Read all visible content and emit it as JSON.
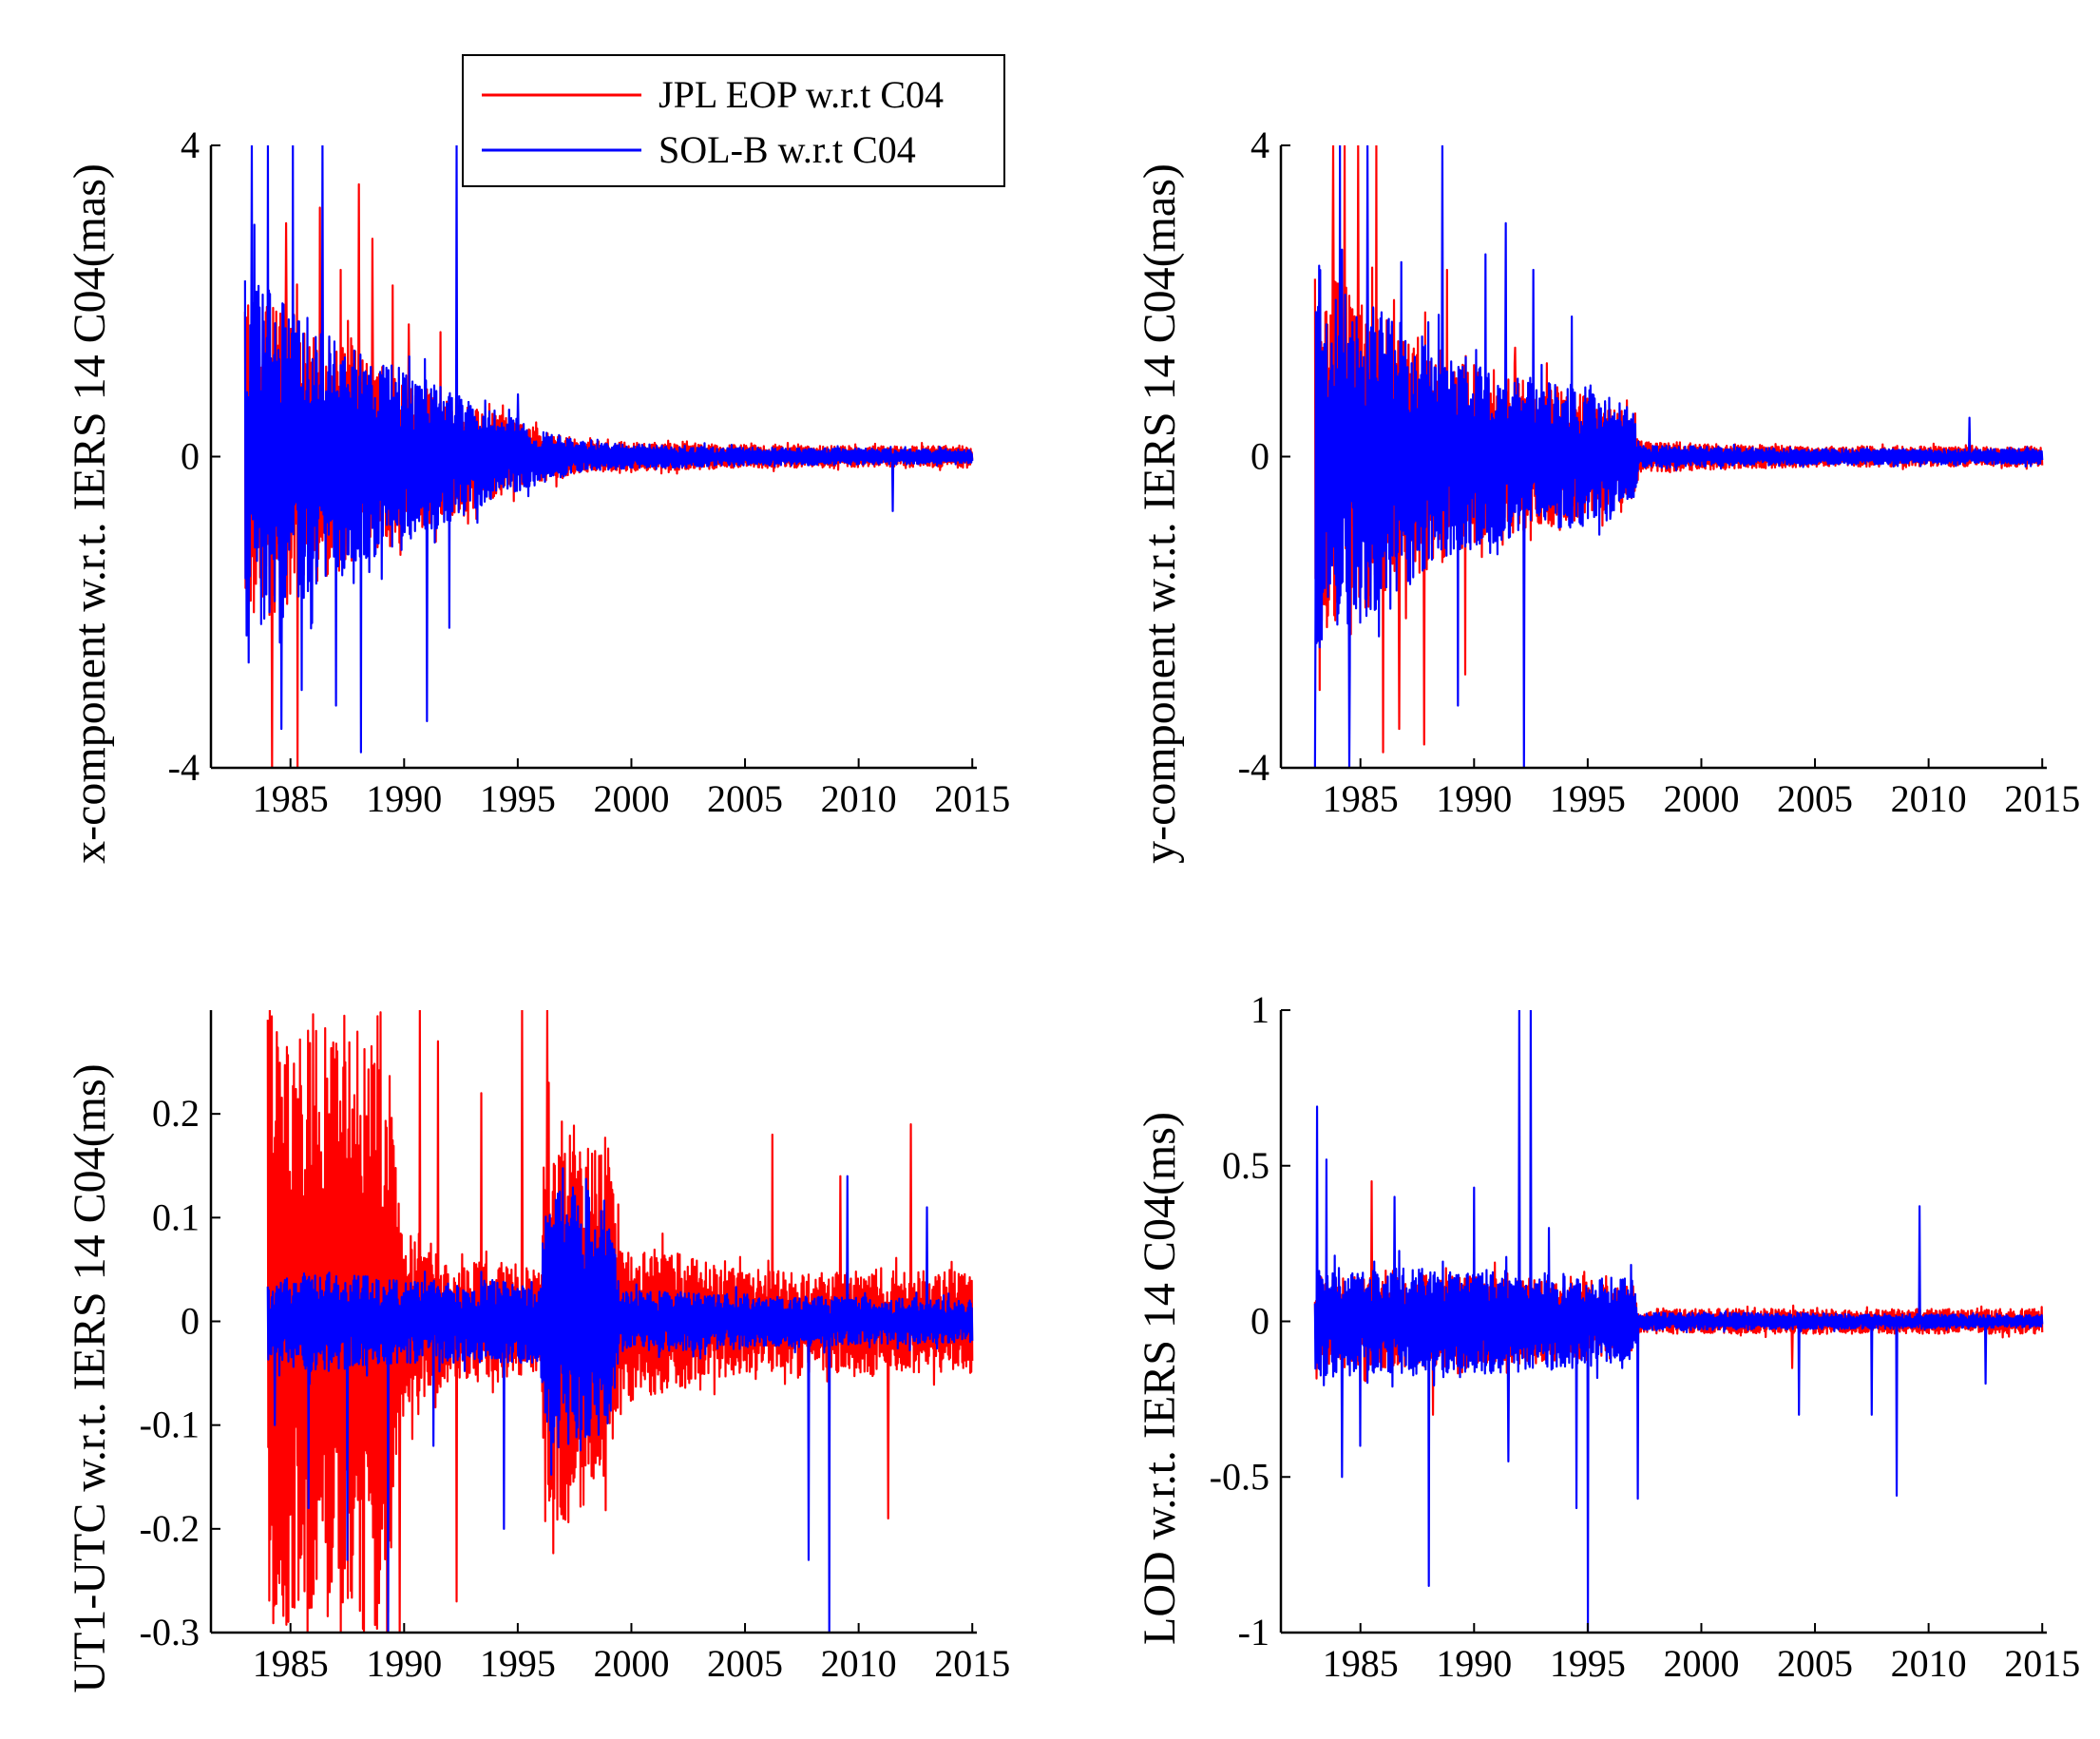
{
  "legend": {
    "entries": [
      {
        "label": "JPL EOP w.r.t C04",
        "color": "#ff0000"
      },
      {
        "label": "SOL-B w.r.t C04",
        "color": "#0000ff"
      }
    ]
  },
  "chart_data": [
    {
      "id": "x",
      "type": "line",
      "ylabel": "x-component w.r.t. IERS 14 C04(mas)",
      "xlim": [
        1981.5,
        2015.2
      ],
      "ylim": [
        -4,
        4
      ],
      "yticks": [
        -4,
        0,
        4
      ],
      "ytick_labels": [
        "-4",
        "0",
        "4"
      ],
      "xticks": [
        1985,
        1990,
        1995,
        2000,
        2005,
        2010,
        2015
      ],
      "xtick_labels": [
        "1985",
        "1990",
        "1995",
        "2000",
        "2005",
        "2010",
        "2015"
      ],
      "x_start": 1983.0,
      "x_end": 2015.0,
      "series": [
        {
          "name": "JPL EOP w.r.t C04",
          "color": "#ff0000",
          "envelope": [
            [
              1983,
              2.2
            ],
            [
              1985,
              1.9
            ],
            [
              1988,
              1.3
            ],
            [
              1991,
              0.9
            ],
            [
              1994,
              0.55
            ],
            [
              1996,
              0.35
            ],
            [
              1998,
              0.2
            ],
            [
              2005,
              0.15
            ],
            [
              2012,
              0.13
            ],
            [
              2015,
              0.15
            ]
          ],
          "spikes": [
            [
              1983.4,
              -2.0
            ],
            [
              1984.2,
              -4.0
            ],
            [
              1984.8,
              3.0
            ],
            [
              1985.3,
              -4.0
            ],
            [
              1986.3,
              3.2
            ],
            [
              1987.2,
              2.4
            ],
            [
              1988.0,
              3.5
            ],
            [
              1988.6,
              2.8
            ],
            [
              1989.5,
              2.2
            ],
            [
              1990.2,
              1.7
            ],
            [
              1991.6,
              1.6
            ]
          ]
        },
        {
          "name": "SOL-B w.r.t C04",
          "color": "#0000ff",
          "envelope": [
            [
              1983,
              2.4
            ],
            [
              1985,
              2.0
            ],
            [
              1988,
              1.4
            ],
            [
              1991,
              1.0
            ],
            [
              1994,
              0.55
            ],
            [
              1996,
              0.35
            ],
            [
              1998,
              0.18
            ],
            [
              2005,
              0.12
            ],
            [
              2012,
              0.1
            ],
            [
              2015,
              0.1
            ]
          ],
          "spikes": [
            [
              1983.3,
              4.0
            ],
            [
              1984.0,
              4.0
            ],
            [
              1984.6,
              -3.5
            ],
            [
              1985.1,
              4.0
            ],
            [
              1985.5,
              -3.0
            ],
            [
              1986.4,
              4.0
            ],
            [
              1987.0,
              -3.2
            ],
            [
              1988.1,
              -3.8
            ],
            [
              1991.0,
              -3.4
            ],
            [
              1992.3,
              4.0
            ],
            [
              1992.0,
              -2.2
            ],
            [
              1995.0,
              0.8
            ],
            [
              2011.5,
              -0.7
            ]
          ]
        }
      ]
    },
    {
      "id": "y",
      "type": "line",
      "ylabel": "y-component w.r.t. IERS 14 C04(mas)",
      "xlim": [
        1981.5,
        2015.2
      ],
      "ylim": [
        -4,
        4
      ],
      "yticks": [
        -4,
        0,
        4
      ],
      "ytick_labels": [
        "-4",
        "0",
        "4"
      ],
      "xticks": [
        1985,
        1990,
        1995,
        2000,
        2005,
        2010,
        2015
      ],
      "xtick_labels": [
        "1985",
        "1990",
        "1995",
        "2000",
        "2005",
        "2010",
        "2015"
      ],
      "x_start": 1983.0,
      "x_end": 2015.0,
      "series": [
        {
          "name": "JPL EOP w.r.t C04",
          "color": "#ff0000",
          "envelope": [
            [
              1983,
              2.5
            ],
            [
              1986,
              1.8
            ],
            [
              1989,
              1.3
            ],
            [
              1992,
              1.0
            ],
            [
              1995,
              0.8
            ],
            [
              1997,
              0.55
            ],
            [
              1997.3,
              0.2
            ],
            [
              2005,
              0.13
            ],
            [
              2015,
              0.13
            ]
          ],
          "spikes": [
            [
              1983.2,
              -3.0
            ],
            [
              1983.8,
              4.0
            ],
            [
              1984.3,
              4.0
            ],
            [
              1984.9,
              4.0
            ],
            [
              1985.7,
              4.0
            ],
            [
              1986.0,
              -3.8
            ],
            [
              1986.7,
              -3.5
            ],
            [
              1987.8,
              -3.7
            ],
            [
              1988.8,
              2.4
            ],
            [
              1989.6,
              -2.8
            ],
            [
              1991.8,
              1.4
            ],
            [
              1993.2,
              1.2
            ]
          ]
        },
        {
          "name": "SOL-B w.r.t C04",
          "color": "#0000ff",
          "envelope": [
            [
              1983,
              2.6
            ],
            [
              1986,
              1.9
            ],
            [
              1989,
              1.3
            ],
            [
              1992,
              1.0
            ],
            [
              1995,
              0.9
            ],
            [
              1997,
              0.6
            ],
            [
              1997.3,
              0.15
            ],
            [
              2005,
              0.1
            ],
            [
              2015,
              0.1
            ]
          ],
          "spikes": [
            [
              1983.0,
              -4.0
            ],
            [
              1983.5,
              1.7
            ],
            [
              1984.1,
              4.0
            ],
            [
              1984.5,
              -4.0
            ],
            [
              1985.3,
              4.0
            ],
            [
              1986.8,
              2.5
            ],
            [
              1988.6,
              4.0
            ],
            [
              1989.3,
              -3.2
            ],
            [
              1990.5,
              2.6
            ],
            [
              1991.4,
              3.0
            ],
            [
              1992.2,
              -4.0
            ],
            [
              1992.6,
              2.4
            ],
            [
              1994.3,
              1.8
            ],
            [
              1996.0,
              -0.8
            ],
            [
              2011.8,
              0.5
            ]
          ]
        }
      ]
    },
    {
      "id": "ut1",
      "type": "line",
      "ylabel": "UT1-UTC w.r.t. IERS 14 C04(ms)",
      "xlim": [
        1981.5,
        2015.2
      ],
      "ylim": [
        -0.3,
        0.3
      ],
      "yticks": [
        -0.3,
        -0.2,
        -0.1,
        0,
        0.1,
        0.2
      ],
      "ytick_labels": [
        "-0.3",
        "-0.2",
        "-0.1",
        "0",
        "0.1",
        "0.2"
      ],
      "xticks": [
        1985,
        1990,
        1995,
        2000,
        2005,
        2010,
        2015
      ],
      "xtick_labels": [
        "1985",
        "1990",
        "1995",
        "2000",
        "2005",
        "2010",
        "2015"
      ],
      "x_start": 1984.0,
      "x_end": 2015.0,
      "series": [
        {
          "name": "JPL EOP w.r.t C04",
          "color": "#ff0000",
          "envelope": [
            [
              1984,
              0.3
            ],
            [
              1989.2,
              0.3
            ],
            [
              1989.8,
              0.1
            ],
            [
              1992,
              0.06
            ],
            [
              1996,
              0.05
            ],
            [
              1996.2,
              0.2
            ],
            [
              1999,
              0.18
            ],
            [
              1999.5,
              0.08
            ],
            [
              2005,
              0.05
            ],
            [
              2015,
              0.05
            ]
          ],
          "spikes": [
            [
              1989.8,
              -0.3
            ],
            [
              1990.7,
              0.3
            ],
            [
              1991.5,
              0.27
            ],
            [
              1992.3,
              -0.27
            ],
            [
              1993.4,
              0.22
            ],
            [
              1995.2,
              0.3
            ],
            [
              1996.3,
              0.3
            ],
            [
              2006.2,
              0.18
            ],
            [
              2009.2,
              0.14
            ],
            [
              2011.3,
              -0.19
            ],
            [
              2012.3,
              0.19
            ]
          ]
        },
        {
          "name": "SOL-B w.r.t C04",
          "color": "#0000ff",
          "envelope": [
            [
              1984,
              0.04
            ],
            [
              1986,
              0.05
            ],
            [
              1990,
              0.04
            ],
            [
              1996,
              0.04
            ],
            [
              1996.2,
              0.13
            ],
            [
              1999,
              0.12
            ],
            [
              1999.5,
              0.03
            ],
            [
              2015,
              0.02
            ]
          ],
          "spikes": [
            [
              1984.3,
              -0.1
            ],
            [
              1985.8,
              -0.18
            ],
            [
              1987.5,
              -0.23
            ],
            [
              1989.3,
              -0.3
            ],
            [
              1991.3,
              -0.12
            ],
            [
              1994.4,
              -0.2
            ],
            [
              2007.8,
              -0.23
            ],
            [
              2008.7,
              -0.3
            ],
            [
              2009.5,
              0.14
            ],
            [
              2013.0,
              0.11
            ]
          ]
        }
      ]
    },
    {
      "id": "lod",
      "type": "line",
      "ylabel": "LOD w.r.t. IERS 14 C04(ms)",
      "xlim": [
        1981.5,
        2015.2
      ],
      "ylim": [
        -1,
        1
      ],
      "yticks": [
        -1,
        -0.5,
        0,
        0.5,
        1
      ],
      "ytick_labels": [
        "-1",
        "-0.5",
        "0",
        "0.5",
        "1"
      ],
      "xticks": [
        1985,
        1990,
        1995,
        2000,
        2005,
        2010,
        2015
      ],
      "xtick_labels": [
        "1985",
        "1990",
        "1995",
        "2000",
        "2005",
        "2010",
        "2015"
      ],
      "x_start": 1983.0,
      "x_end": 2015.0,
      "series": [
        {
          "name": "JPL EOP w.r.t C04",
          "color": "#ff0000",
          "envelope": [
            [
              1983,
              0.15
            ],
            [
              1990,
              0.15
            ],
            [
              1997,
              0.12
            ],
            [
              1997.2,
              0.04
            ],
            [
              2015,
              0.04
            ]
          ],
          "spikes": [
            [
              1985.5,
              0.45
            ],
            [
              1988.2,
              -0.3
            ],
            [
              2004.0,
              -0.15
            ]
          ]
        },
        {
          "name": "SOL-B w.r.t C04",
          "color": "#0000ff",
          "envelope": [
            [
              1983,
              0.18
            ],
            [
              1990,
              0.17
            ],
            [
              1997,
              0.14
            ],
            [
              1997.2,
              0.03
            ],
            [
              2015,
              0.02
            ]
          ],
          "spikes": [
            [
              1983.1,
              0.69
            ],
            [
              1983.5,
              0.52
            ],
            [
              1984.2,
              -0.5
            ],
            [
              1985.0,
              -0.4
            ],
            [
              1986.5,
              0.4
            ],
            [
              1988.0,
              -0.85
            ],
            [
              1990.0,
              0.43
            ],
            [
              1991.5,
              -0.45
            ],
            [
              1992.0,
              1.0
            ],
            [
              1992.5,
              1.0
            ],
            [
              1993.3,
              0.3
            ],
            [
              1994.5,
              -0.6
            ],
            [
              1995.0,
              -1.0
            ],
            [
              1997.2,
              -0.57
            ],
            [
              2004.3,
              -0.3
            ],
            [
              2007.5,
              -0.3
            ],
            [
              2008.6,
              -0.56
            ],
            [
              2009.6,
              0.37
            ],
            [
              2012.5,
              -0.2
            ]
          ]
        }
      ]
    }
  ]
}
